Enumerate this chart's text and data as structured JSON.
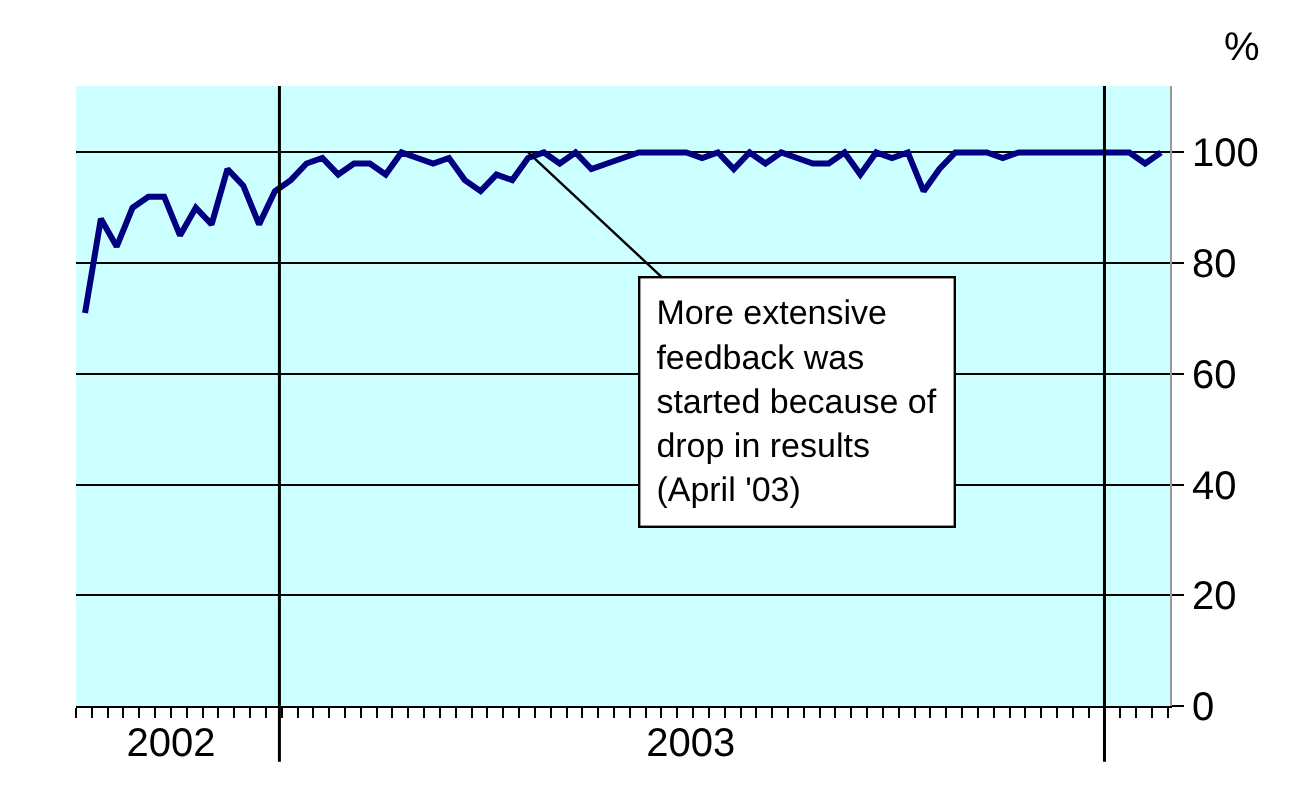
{
  "chart_data": {
    "type": "line",
    "ylabel": "%",
    "x": [
      "2002-10-07",
      "2002-10-14",
      "2002-10-21",
      "2002-10-28",
      "2002-11-04",
      "2002-11-11",
      "2002-11-18",
      "2002-11-25",
      "2002-12-02",
      "2002-12-09",
      "2002-12-16",
      "2002-12-23",
      "2002-12-30",
      "2003-01-06",
      "2003-01-13",
      "2003-01-20",
      "2003-01-27",
      "2003-02-03",
      "2003-02-10",
      "2003-02-17",
      "2003-02-24",
      "2003-03-03",
      "2003-03-10",
      "2003-03-17",
      "2003-03-24",
      "2003-03-31",
      "2003-04-07",
      "2003-04-14",
      "2003-04-21",
      "2003-04-28",
      "2003-05-05",
      "2003-05-12",
      "2003-05-19",
      "2003-05-26",
      "2003-06-02",
      "2003-06-09",
      "2003-06-16",
      "2003-06-23",
      "2003-06-30",
      "2003-07-07",
      "2003-07-14",
      "2003-07-21",
      "2003-07-28",
      "2003-08-04",
      "2003-08-11",
      "2003-08-18",
      "2003-08-25",
      "2003-09-01",
      "2003-09-08",
      "2003-09-15",
      "2003-09-22",
      "2003-09-29",
      "2003-10-06",
      "2003-10-13",
      "2003-10-20",
      "2003-10-27",
      "2003-11-03",
      "2003-11-10",
      "2003-11-17",
      "2003-11-24",
      "2003-12-01",
      "2003-12-08",
      "2003-12-15",
      "2003-12-22",
      "2003-12-29",
      "2004-01-05",
      "2004-01-12",
      "2004-01-19",
      "2004-01-26"
    ],
    "series": [
      {
        "color": "#000080",
        "values": [
          71,
          88,
          83,
          90,
          92,
          92,
          85,
          90,
          87,
          97,
          94,
          87,
          93,
          95,
          98,
          99,
          96,
          98,
          98,
          96,
          100,
          99,
          98,
          99,
          95,
          93,
          96,
          95,
          99,
          100,
          98,
          100,
          97,
          98,
          99,
          100,
          100,
          100,
          100,
          99,
          100,
          97,
          100,
          98,
          100,
          99,
          98,
          98,
          100,
          96,
          100,
          99,
          100,
          93,
          97,
          100,
          100,
          100,
          99,
          100,
          100,
          100,
          100,
          100,
          100,
          100,
          100,
          98,
          100
        ]
      }
    ],
    "xlim": [
      "2002-10-03",
      "2004-01-30"
    ],
    "xticks": [
      {
        "value": "2002-11-14",
        "label": "2002"
      },
      {
        "value": "2003-07-02",
        "label": "2003"
      },
      {
        "value": "2002-10-03",
        "label": null
      },
      {
        "value": "2002-10-10",
        "label": null
      },
      {
        "value": "2002-10-17",
        "label": null
      },
      {
        "value": "2002-10-24",
        "label": null
      },
      {
        "value": "2002-10-31",
        "label": null
      },
      {
        "value": "2002-11-07",
        "label": null
      },
      {
        "value": "2002-11-14",
        "label": null
      },
      {
        "value": "2002-11-21",
        "label": null
      },
      {
        "value": "2002-11-28",
        "label": null
      },
      {
        "value": "2002-12-05",
        "label": null
      },
      {
        "value": "2002-12-12",
        "label": null
      },
      {
        "value": "2002-12-19",
        "label": null
      },
      {
        "value": "2002-12-26",
        "label": null
      },
      {
        "value": "2003-01-02",
        "label": null
      },
      {
        "value": "2003-01-09",
        "label": null
      },
      {
        "value": "2003-01-16",
        "label": null
      },
      {
        "value": "2003-01-23",
        "label": null
      },
      {
        "value": "2003-01-30",
        "label": null
      },
      {
        "value": "2003-02-06",
        "label": null
      },
      {
        "value": "2003-02-13",
        "label": null
      },
      {
        "value": "2003-02-20",
        "label": null
      },
      {
        "value": "2003-02-27",
        "label": null
      },
      {
        "value": "2003-03-06",
        "label": null
      },
      {
        "value": "2003-03-13",
        "label": null
      },
      {
        "value": "2003-03-20",
        "label": null
      },
      {
        "value": "2003-03-27",
        "label": null
      },
      {
        "value": "2003-04-03",
        "label": null
      },
      {
        "value": "2003-04-10",
        "label": null
      },
      {
        "value": "2003-04-17",
        "label": null
      },
      {
        "value": "2003-04-24",
        "label": null
      },
      {
        "value": "2003-05-01",
        "label": null
      },
      {
        "value": "2003-05-08",
        "label": null
      },
      {
        "value": "2003-05-15",
        "label": null
      },
      {
        "value": "2003-05-22",
        "label": null
      },
      {
        "value": "2003-05-29",
        "label": null
      },
      {
        "value": "2003-06-05",
        "label": null
      },
      {
        "value": "2003-06-12",
        "label": null
      },
      {
        "value": "2003-06-19",
        "label": null
      },
      {
        "value": "2003-06-26",
        "label": null
      },
      {
        "value": "2003-07-03",
        "label": null
      },
      {
        "value": "2003-07-10",
        "label": null
      },
      {
        "value": "2003-07-17",
        "label": null
      },
      {
        "value": "2003-07-24",
        "label": null
      },
      {
        "value": "2003-07-31",
        "label": null
      },
      {
        "value": "2003-08-07",
        "label": null
      },
      {
        "value": "2003-08-14",
        "label": null
      },
      {
        "value": "2003-08-21",
        "label": null
      },
      {
        "value": "2003-08-28",
        "label": null
      },
      {
        "value": "2003-09-04",
        "label": null
      },
      {
        "value": "2003-09-11",
        "label": null
      },
      {
        "value": "2003-09-18",
        "label": null
      },
      {
        "value": "2003-09-25",
        "label": null
      },
      {
        "value": "2003-10-02",
        "label": null
      },
      {
        "value": "2003-10-09",
        "label": null
      },
      {
        "value": "2003-10-16",
        "label": null
      },
      {
        "value": "2003-10-23",
        "label": null
      },
      {
        "value": "2003-10-30",
        "label": null
      },
      {
        "value": "2003-11-06",
        "label": null
      },
      {
        "value": "2003-11-13",
        "label": null
      },
      {
        "value": "2003-11-20",
        "label": null
      },
      {
        "value": "2003-11-27",
        "label": null
      },
      {
        "value": "2003-12-04",
        "label": null
      },
      {
        "value": "2003-12-11",
        "label": null
      },
      {
        "value": "2003-12-18",
        "label": null
      },
      {
        "value": "2003-12-25",
        "label": null
      },
      {
        "value": "2004-01-01",
        "label": null
      },
      {
        "value": "2004-01-08",
        "label": null
      },
      {
        "value": "2004-01-15",
        "label": null
      },
      {
        "value": "2004-01-22",
        "label": null
      },
      {
        "value": "2004-01-29",
        "label": null
      }
    ],
    "ylim": [
      0,
      112
    ],
    "yticks": [
      0,
      20,
      40,
      60,
      80,
      100
    ],
    "grid": "y",
    "marker": "none",
    "line_style": "solid",
    "ref_lines": [
      {
        "axis": "x",
        "value": "2003-01-01",
        "color": "#000000"
      },
      {
        "axis": "x",
        "value": "2004-01-01",
        "color": "#000000"
      }
    ],
    "annotations": [
      {
        "text": "More extensive feedback was started because of drop in results (April '03)",
        "x": "2003-04-21",
        "y": 100
      }
    ]
  }
}
